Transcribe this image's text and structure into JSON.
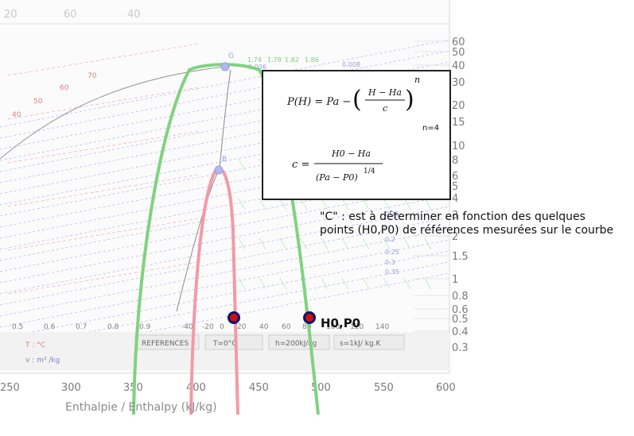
{
  "diagram": {
    "x_axis_title": "Enthalpie / Enthalpy (kJ/kg)",
    "x_ticks": [
      "250",
      "300",
      "350",
      "400",
      "450",
      "500",
      "550",
      "600"
    ],
    "top_ticks": [
      "20",
      "60",
      "40"
    ],
    "pressure_ticks": [
      "60",
      "50",
      "40",
      "30",
      "20",
      "15",
      "10",
      "8",
      "6",
      "5",
      "4",
      "3",
      "2",
      "1.5",
      "1",
      "0.8",
      "0.6",
      "0.5",
      "0.4",
      "0.3"
    ],
    "quality_values": [
      "0.5",
      "0.6",
      "0.7",
      "0.8",
      "0.9"
    ],
    "temperature_values": [
      "-40",
      "-20",
      "0",
      "20",
      "40",
      "60",
      "80",
      "100",
      "120",
      "140"
    ],
    "legend_cells": [
      "REFERENCES",
      "T=0°C",
      "h=200kJ/kg",
      "s=1kJ/ kg.K"
    ],
    "legend_temp": "T : °C",
    "legend_volume": "v : m³ /kg",
    "isotherm_labels": [
      "70",
      "60",
      "50",
      "40"
    ],
    "entropy_labels": [
      "1.74",
      "1.78",
      "1.82",
      "1.86"
    ],
    "volume_labels": [
      "0.006",
      "0.008"
    ],
    "volume_right_labels": [
      "0.15",
      "0.2",
      "0.25",
      "0.3",
      "0.35"
    ],
    "point_labels": [
      "G",
      "B"
    ],
    "marker_label": "H0,P0"
  },
  "formula": {
    "lhs": "P(H) = Pa −",
    "frac_num": "H − Ha",
    "frac_den": "c",
    "exponent": "n",
    "n_note": "n=4",
    "c_lhs": "c =",
    "c_num": "H0 − Ha",
    "c_den": "(Pa − P0)",
    "c_exp": "1/4"
  },
  "note": {
    "line1": "\"C\" :  est à déterminer en fonction des quelques",
    "line2": "points (H0,P0) de références mesurées sur le courbe"
  },
  "colors": {
    "green_curve": "#7fd37f",
    "pink_curve": "#f29aa6",
    "marker_fill": "#cc1111",
    "marker_ring": "#10106e"
  }
}
